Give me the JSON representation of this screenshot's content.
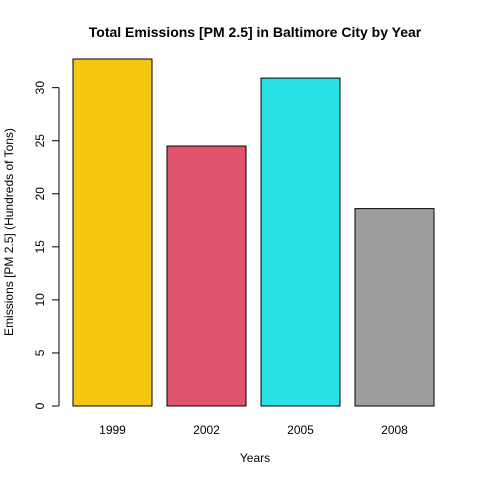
{
  "chart_data": {
    "type": "bar",
    "title": "Total Emissions [PM 2.5] in Baltimore City by Year",
    "xlabel": "Years",
    "ylabel": "Emissions [PM 2.5] (Hundreds of Tons)",
    "categories": [
      "1999",
      "2002",
      "2005",
      "2008"
    ],
    "values": [
      32.7,
      24.5,
      30.9,
      18.6
    ],
    "colors": [
      "#F5C710",
      "#DF536B",
      "#28E2E5",
      "#9E9E9E"
    ],
    "ylim": [
      0,
      32.7
    ],
    "yticks": [
      0,
      5,
      10,
      15,
      20,
      25,
      30
    ],
    "grid": false,
    "legend": "none"
  }
}
